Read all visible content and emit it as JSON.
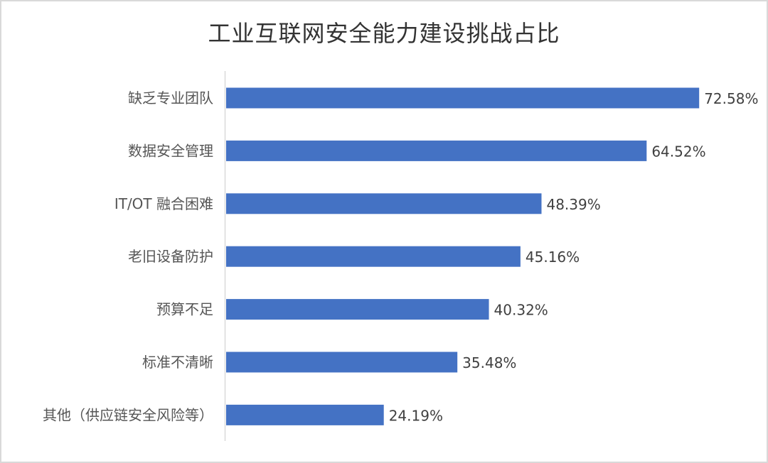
{
  "chart_data": {
    "type": "bar",
    "orientation": "horizontal",
    "title": "工业互联网安全能力建设挑战占比",
    "categories": [
      "缺乏专业团队",
      "数据安全管理",
      "IT/OT 融合困难",
      "老旧设备防护",
      "预算不足",
      "标准不清晰",
      "其他（供应链安全风险等）"
    ],
    "values": [
      72.58,
      64.52,
      48.39,
      45.16,
      40.32,
      35.48,
      24.19
    ],
    "labels": [
      "72.58%",
      "64.52%",
      "48.39%",
      "45.16%",
      "40.32%",
      "35.48%",
      "24.19%"
    ],
    "unit": "%",
    "bar_color": "#4472C4",
    "grid": false,
    "legend": "none"
  }
}
